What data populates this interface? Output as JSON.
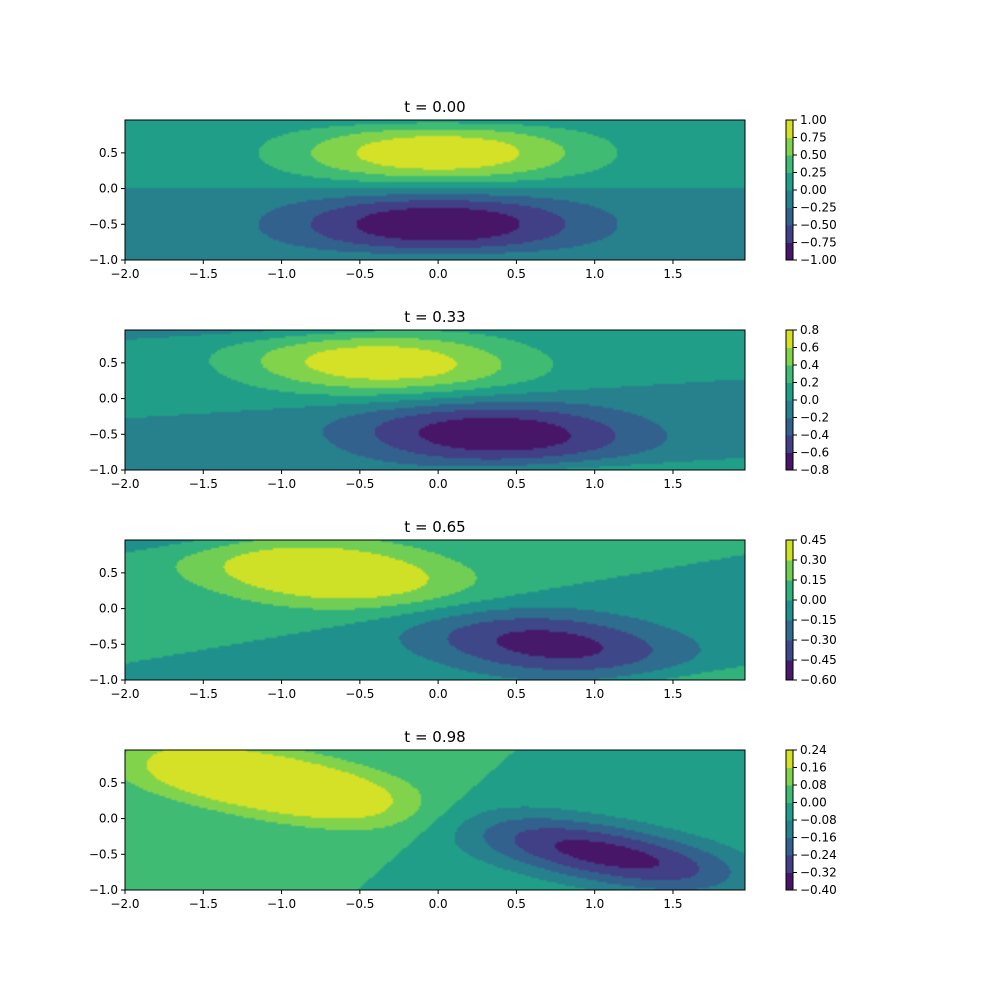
{
  "chart_data": [
    {
      "type": "contourf",
      "title": "t = 0.00",
      "xlim": [
        -2.0,
        1.96
      ],
      "ylim": [
        -1.0,
        0.96
      ],
      "xticks": [
        "−2.0",
        "−1.5",
        "−1.0",
        "−0.5",
        "0.0",
        "0.5",
        "1.0",
        "1.5"
      ],
      "yticks": [
        "−1.0",
        "−0.5",
        "0.0",
        "0.5"
      ],
      "colorbar_ticks": [
        "−1.00",
        "−0.75",
        "−0.50",
        "−0.25",
        "0.00",
        "0.25",
        "0.50",
        "0.75",
        "1.00"
      ],
      "colorbar_range": [
        -1.0,
        1.0
      ],
      "colormap": "viridis",
      "field": {
        "amplitude": 1.0,
        "shear": 0.0
      }
    },
    {
      "type": "contourf",
      "title": "t = 0.33",
      "xlim": [
        -2.0,
        1.96
      ],
      "ylim": [
        -1.0,
        0.96
      ],
      "xticks": [
        "−2.0",
        "−1.5",
        "−1.0",
        "−0.5",
        "0.0",
        "0.5",
        "1.0",
        "1.5"
      ],
      "yticks": [
        "−1.0",
        "−0.5",
        "0.0",
        "0.5"
      ],
      "colorbar_ticks": [
        "−0.8",
        "−0.6",
        "−0.4",
        "−0.2",
        "0.0",
        "0.2",
        "0.4",
        "0.6",
        "0.8"
      ],
      "colorbar_range": [
        -0.8,
        0.8
      ],
      "colormap": "viridis",
      "field": {
        "amplitude": 0.78,
        "shear": 0.33
      }
    },
    {
      "type": "contourf",
      "title": "t = 0.65",
      "xlim": [
        -2.0,
        1.96
      ],
      "ylim": [
        -1.0,
        0.96
      ],
      "xticks": [
        "−2.0",
        "−1.5",
        "−1.0",
        "−0.5",
        "0.0",
        "0.5",
        "1.0",
        "1.5"
      ],
      "yticks": [
        "−1.0",
        "−0.5",
        "0.0",
        "0.5"
      ],
      "colorbar_ticks": [
        "−0.60",
        "−0.45",
        "−0.30",
        "−0.15",
        "0.00",
        "0.15",
        "0.30",
        "0.45"
      ],
      "colorbar_range": [
        -0.6,
        0.45
      ],
      "colormap": "viridis",
      "field": {
        "amplitude": 0.52,
        "shear": 0.65
      }
    },
    {
      "type": "contourf",
      "title": "t = 0.98",
      "xlim": [
        -2.0,
        1.96
      ],
      "ylim": [
        -1.0,
        0.96
      ],
      "xticks": [
        "−2.0",
        "−1.5",
        "−1.0",
        "−0.5",
        "0.0",
        "0.5",
        "1.0",
        "1.5"
      ],
      "yticks": [
        "−1.0",
        "−0.5",
        "0.0",
        "0.5"
      ],
      "colorbar_ticks": [
        "−0.40",
        "−0.32",
        "−0.24",
        "−0.16",
        "−0.08",
        "0.00",
        "0.08",
        "0.16",
        "0.24"
      ],
      "colorbar_range": [
        -0.4,
        0.24
      ],
      "colormap": "viridis",
      "field": {
        "amplitude": 0.36,
        "shear": 0.98
      }
    }
  ]
}
